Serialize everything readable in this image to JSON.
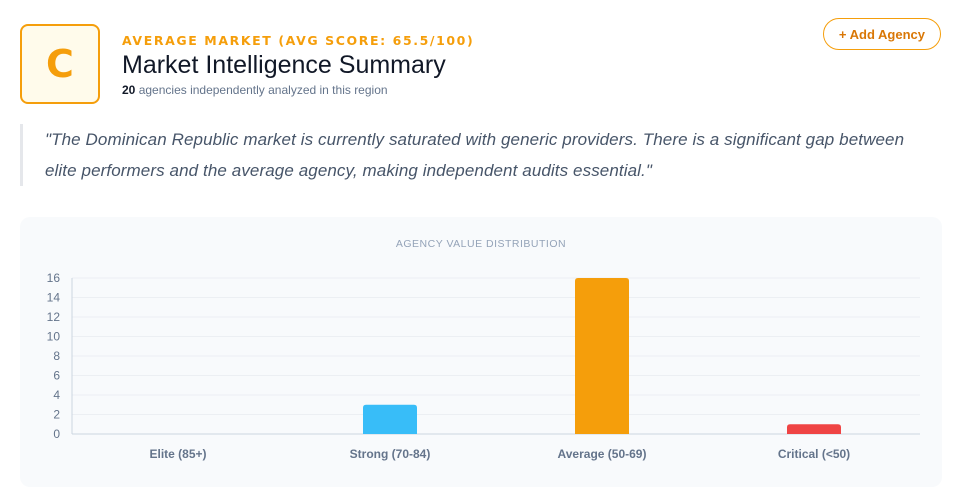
{
  "grade": {
    "letter": "C"
  },
  "header": {
    "eyebrow": "AVERAGE MARKET (AVG SCORE: 65.5/100)",
    "title": "Market Intelligence Summary",
    "agency_count": "20",
    "subtitle_rest": "agencies independently analyzed in this region"
  },
  "actions": {
    "add_agency_label": "+ Add Agency"
  },
  "quote": {
    "text": "\"The Dominican Republic market is currently saturated with generic providers. There is a significant gap between elite performers and the average agency, making independent audits essential.\""
  },
  "colors": {
    "accent": "#f59e0b",
    "strong": "#38bdf8",
    "average": "#f59e0b",
    "critical": "#ef4444"
  },
  "chart_data": {
    "type": "bar",
    "title": "AGENCY VALUE DISTRIBUTION",
    "categories": [
      "Elite (85+)",
      "Strong (70-84)",
      "Average (50-69)",
      "Critical (<50)"
    ],
    "values": [
      0,
      3,
      16,
      1
    ],
    "colors": [
      "#22c55e",
      "#38bdf8",
      "#f59e0b",
      "#ef4444"
    ],
    "yticks": [
      0,
      2,
      4,
      6,
      8,
      10,
      12,
      14,
      16
    ],
    "ylim": [
      0,
      16
    ],
    "xlabel": "",
    "ylabel": "",
    "grid": true,
    "legend": "none"
  }
}
